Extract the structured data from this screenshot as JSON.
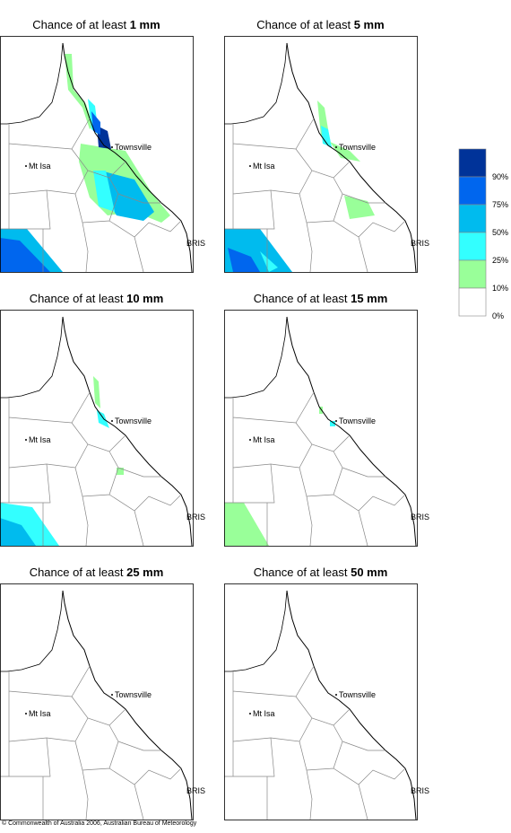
{
  "panels": [
    {
      "title_prefix": "Chance of at least",
      "title_amount": "1 mm"
    },
    {
      "title_prefix": "Chance of at least",
      "title_amount": "5 mm"
    },
    {
      "title_prefix": "Chance of at least",
      "title_amount": "10 mm"
    },
    {
      "title_prefix": "Chance of at least",
      "title_amount": "15 mm"
    },
    {
      "title_prefix": "Chance of at least",
      "title_amount": "25 mm"
    },
    {
      "title_prefix": "Chance of at least",
      "title_amount": "50 mm"
    }
  ],
  "places": [
    "Townsville",
    "Mt Isa",
    "BRIS"
  ],
  "legend": {
    "colors": [
      "#003399",
      "#0066ee",
      "#00bbee",
      "#33ffff",
      "#99ff99",
      "#ffffff"
    ],
    "labels": [
      "90%",
      "75%",
      "50%",
      "25%",
      "10%",
      "0%"
    ]
  },
  "copyright": "© Commonwealth of Australia 2006, Australian Bureau of Meteorology"
}
